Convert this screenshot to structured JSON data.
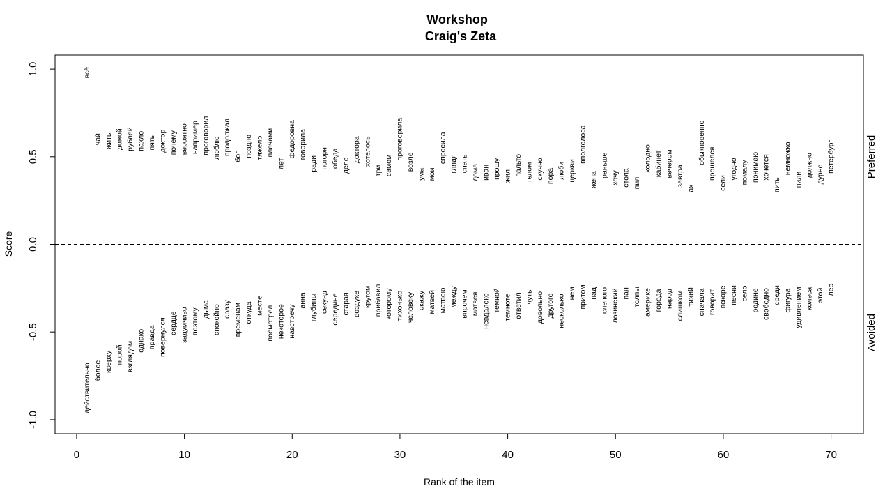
{
  "chart_data": {
    "type": "scatter",
    "title": "Workshop",
    "subtitle": "Craig's Zeta",
    "xlabel": "Rank of the item",
    "ylabel": "Score",
    "xlim": [
      -2,
      73
    ],
    "ylim": [
      -1.08,
      1.08
    ],
    "xticks": [
      0,
      10,
      20,
      30,
      40,
      50,
      60,
      70
    ],
    "yticks": [
      -1.0,
      -0.5,
      0.0,
      0.5,
      1.0
    ],
    "xtick_labels": [
      "0",
      "10",
      "20",
      "30",
      "40",
      "50",
      "60",
      "70"
    ],
    "ytick_labels": [
      "-1.0",
      "-0.5",
      "0.0",
      "0.5",
      "1.0"
    ],
    "reference_line": 0.0,
    "side_labels": {
      "top": "Preferred",
      "bottom": "Avoided"
    },
    "series": [
      {
        "name": "Preferred",
        "points": [
          {
            "x": 1,
            "y": 0.98,
            "label": "всё"
          },
          {
            "x": 2,
            "y": 0.6,
            "label": "чай"
          },
          {
            "x": 3,
            "y": 0.59,
            "label": "жить"
          },
          {
            "x": 4,
            "y": 0.6,
            "label": "домой"
          },
          {
            "x": 5,
            "y": 0.6,
            "label": "рублей"
          },
          {
            "x": 6,
            "y": 0.59,
            "label": "пахло"
          },
          {
            "x": 7,
            "y": 0.58,
            "label": "пять"
          },
          {
            "x": 8,
            "y": 0.59,
            "label": "доктор"
          },
          {
            "x": 9,
            "y": 0.58,
            "label": "почему"
          },
          {
            "x": 10,
            "y": 0.6,
            "label": "вероятно"
          },
          {
            "x": 11,
            "y": 0.61,
            "label": "например"
          },
          {
            "x": 12,
            "y": 0.62,
            "label": "проговорил"
          },
          {
            "x": 13,
            "y": 0.55,
            "label": "люблю"
          },
          {
            "x": 14,
            "y": 0.61,
            "label": "продолжал"
          },
          {
            "x": 15,
            "y": 0.5,
            "label": "бог"
          },
          {
            "x": 16,
            "y": 0.56,
            "label": "поздно"
          },
          {
            "x": 17,
            "y": 0.55,
            "label": "тяжело"
          },
          {
            "x": 18,
            "y": 0.58,
            "label": "плечами"
          },
          {
            "x": 19,
            "y": 0.46,
            "label": "лет"
          },
          {
            "x": 20,
            "y": 0.6,
            "label": "федоровна"
          },
          {
            "x": 21,
            "y": 0.57,
            "label": "говорила"
          },
          {
            "x": 22,
            "y": 0.46,
            "label": "ради"
          },
          {
            "x": 23,
            "y": 0.49,
            "label": "погоря"
          },
          {
            "x": 24,
            "y": 0.49,
            "label": "обеда"
          },
          {
            "x": 25,
            "y": 0.45,
            "label": "деле"
          },
          {
            "x": 26,
            "y": 0.54,
            "label": "доктора"
          },
          {
            "x": 27,
            "y": 0.53,
            "label": "хотелось"
          },
          {
            "x": 28,
            "y": 0.42,
            "label": "три"
          },
          {
            "x": 29,
            "y": 0.45,
            "label": "самом"
          },
          {
            "x": 30,
            "y": 0.6,
            "label": "проговорила"
          },
          {
            "x": 31,
            "y": 0.47,
            "label": "возле"
          },
          {
            "x": 32,
            "y": 0.4,
            "label": "ума"
          },
          {
            "x": 33,
            "y": 0.4,
            "label": "мои"
          },
          {
            "x": 34,
            "y": 0.55,
            "label": "спросила"
          },
          {
            "x": 35,
            "y": 0.46,
            "label": "глядя"
          },
          {
            "x": 36,
            "y": 0.46,
            "label": "спать"
          },
          {
            "x": 37,
            "y": 0.41,
            "label": "дома"
          },
          {
            "x": 38,
            "y": 0.41,
            "label": "иван"
          },
          {
            "x": 39,
            "y": 0.43,
            "label": "прошу"
          },
          {
            "x": 40,
            "y": 0.39,
            "label": "жил"
          },
          {
            "x": 41,
            "y": 0.45,
            "label": "пальто"
          },
          {
            "x": 42,
            "y": 0.41,
            "label": "телом"
          },
          {
            "x": 43,
            "y": 0.43,
            "label": "скучно"
          },
          {
            "x": 44,
            "y": 0.39,
            "label": "пора"
          },
          {
            "x": 45,
            "y": 0.43,
            "label": "любит"
          },
          {
            "x": 46,
            "y": 0.42,
            "label": "церкви"
          },
          {
            "x": 47,
            "y": 0.57,
            "label": "вполголоса"
          },
          {
            "x": 48,
            "y": 0.37,
            "label": "жена"
          },
          {
            "x": 49,
            "y": 0.45,
            "label": "раньше"
          },
          {
            "x": 50,
            "y": 0.38,
            "label": "хочу"
          },
          {
            "x": 51,
            "y": 0.38,
            "label": "стола"
          },
          {
            "x": 52,
            "y": 0.35,
            "label": "пил"
          },
          {
            "x": 53,
            "y": 0.49,
            "label": "холодно"
          },
          {
            "x": 54,
            "y": 0.46,
            "label": "кабинет"
          },
          {
            "x": 55,
            "y": 0.46,
            "label": "вечером"
          },
          {
            "x": 56,
            "y": 0.39,
            "label": "завтра"
          },
          {
            "x": 57,
            "y": 0.32,
            "label": "ах"
          },
          {
            "x": 58,
            "y": 0.58,
            "label": "обыкновенно"
          },
          {
            "x": 59,
            "y": 0.46,
            "label": "прошелся"
          },
          {
            "x": 60,
            "y": 0.35,
            "label": "сели"
          },
          {
            "x": 61,
            "y": 0.43,
            "label": "угодно"
          },
          {
            "x": 62,
            "y": 0.41,
            "label": "помалу"
          },
          {
            "x": 63,
            "y": 0.44,
            "label": "понимаю"
          },
          {
            "x": 64,
            "y": 0.44,
            "label": "хочется"
          },
          {
            "x": 65,
            "y": 0.34,
            "label": "пить"
          },
          {
            "x": 66,
            "y": 0.49,
            "label": "немножко"
          },
          {
            "x": 67,
            "y": 0.37,
            "label": "пили"
          },
          {
            "x": 68,
            "y": 0.45,
            "label": "должно"
          },
          {
            "x": 69,
            "y": 0.4,
            "label": "дурно"
          },
          {
            "x": 70,
            "y": 0.5,
            "label": "петербург"
          }
        ]
      },
      {
        "name": "Avoided",
        "points": [
          {
            "x": 1,
            "y": -0.82,
            "label": "действительно"
          },
          {
            "x": 2,
            "y": -0.72,
            "label": "более"
          },
          {
            "x": 3,
            "y": -0.67,
            "label": "кверху"
          },
          {
            "x": 4,
            "y": -0.63,
            "label": "порой"
          },
          {
            "x": 5,
            "y": -0.64,
            "label": "взглядом"
          },
          {
            "x": 6,
            "y": -0.55,
            "label": "однако"
          },
          {
            "x": 7,
            "y": -0.53,
            "label": "правда"
          },
          {
            "x": 8,
            "y": -0.53,
            "label": "повернулся"
          },
          {
            "x": 9,
            "y": -0.45,
            "label": "сердце"
          },
          {
            "x": 10,
            "y": -0.46,
            "label": "задумчиво"
          },
          {
            "x": 11,
            "y": -0.44,
            "label": "поэтому"
          },
          {
            "x": 12,
            "y": -0.37,
            "label": "дыма"
          },
          {
            "x": 13,
            "y": -0.43,
            "label": "спокойно"
          },
          {
            "x": 14,
            "y": -0.37,
            "label": "сразу"
          },
          {
            "x": 15,
            "y": -0.43,
            "label": "временам"
          },
          {
            "x": 16,
            "y": -0.39,
            "label": "откуда"
          },
          {
            "x": 17,
            "y": -0.35,
            "label": "месте"
          },
          {
            "x": 18,
            "y": -0.45,
            "label": "посмотрел"
          },
          {
            "x": 19,
            "y": -0.44,
            "label": "некоторое"
          },
          {
            "x": 20,
            "y": -0.44,
            "label": "навстречу"
          },
          {
            "x": 21,
            "y": -0.32,
            "label": "анна"
          },
          {
            "x": 22,
            "y": -0.36,
            "label": "глубины"
          },
          {
            "x": 23,
            "y": -0.33,
            "label": "секунд"
          },
          {
            "x": 24,
            "y": -0.37,
            "label": "середине"
          },
          {
            "x": 25,
            "y": -0.34,
            "label": "старая"
          },
          {
            "x": 26,
            "y": -0.34,
            "label": "воздухе"
          },
          {
            "x": 27,
            "y": -0.3,
            "label": "кругом"
          },
          {
            "x": 28,
            "y": -0.32,
            "label": "прибавил"
          },
          {
            "x": 29,
            "y": -0.34,
            "label": "которому"
          },
          {
            "x": 30,
            "y": -0.35,
            "label": "тихонько"
          },
          {
            "x": 31,
            "y": -0.36,
            "label": "человеку"
          },
          {
            "x": 32,
            "y": -0.32,
            "label": "скажу"
          },
          {
            "x": 33,
            "y": -0.33,
            "label": "матвей"
          },
          {
            "x": 34,
            "y": -0.32,
            "label": "матвею"
          },
          {
            "x": 35,
            "y": -0.3,
            "label": "между"
          },
          {
            "x": 36,
            "y": -0.34,
            "label": "впрочем"
          },
          {
            "x": 37,
            "y": -0.34,
            "label": "матвея"
          },
          {
            "x": 38,
            "y": -0.38,
            "label": "невдалеке"
          },
          {
            "x": 39,
            "y": -0.32,
            "label": "темной"
          },
          {
            "x": 40,
            "y": -0.36,
            "label": "темноте"
          },
          {
            "x": 41,
            "y": -0.35,
            "label": "ответил"
          },
          {
            "x": 42,
            "y": -0.3,
            "label": "чуть"
          },
          {
            "x": 43,
            "y": -0.36,
            "label": "довольно"
          },
          {
            "x": 44,
            "y": -0.35,
            "label": "другого"
          },
          {
            "x": 45,
            "y": -0.38,
            "label": "несколько"
          },
          {
            "x": 46,
            "y": -0.28,
            "label": "нем"
          },
          {
            "x": 47,
            "y": -0.3,
            "label": "притом"
          },
          {
            "x": 48,
            "y": -0.28,
            "label": "над"
          },
          {
            "x": 49,
            "y": -0.32,
            "label": "слепого"
          },
          {
            "x": 50,
            "y": -0.35,
            "label": "лозинский"
          },
          {
            "x": 51,
            "y": -0.28,
            "label": "пан"
          },
          {
            "x": 52,
            "y": -0.3,
            "label": "толпы"
          },
          {
            "x": 53,
            "y": -0.33,
            "label": "америке"
          },
          {
            "x": 54,
            "y": -0.32,
            "label": "города"
          },
          {
            "x": 55,
            "y": -0.31,
            "label": "народ"
          },
          {
            "x": 56,
            "y": -0.35,
            "label": "слишком"
          },
          {
            "x": 57,
            "y": -0.3,
            "label": "тихий"
          },
          {
            "x": 58,
            "y": -0.33,
            "label": "сначала"
          },
          {
            "x": 59,
            "y": -0.33,
            "label": "говорит"
          },
          {
            "x": 60,
            "y": -0.3,
            "label": "вскоре"
          },
          {
            "x": 61,
            "y": -0.29,
            "label": "песни"
          },
          {
            "x": 62,
            "y": -0.28,
            "label": "село"
          },
          {
            "x": 63,
            "y": -0.32,
            "label": "родине"
          },
          {
            "x": 64,
            "y": -0.34,
            "label": "свободно"
          },
          {
            "x": 65,
            "y": -0.29,
            "label": "среди"
          },
          {
            "x": 66,
            "y": -0.32,
            "label": "фигура"
          },
          {
            "x": 67,
            "y": -0.36,
            "label": "удивлением"
          },
          {
            "x": 68,
            "y": -0.31,
            "label": "колеса"
          },
          {
            "x": 69,
            "y": -0.29,
            "label": "этой"
          },
          {
            "x": 70,
            "y": -0.26,
            "label": "лес"
          }
        ]
      }
    ]
  }
}
